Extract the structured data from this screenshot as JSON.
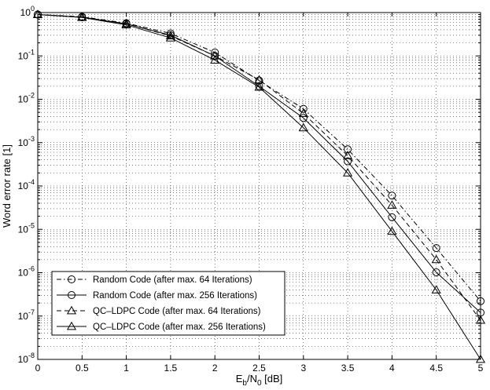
{
  "chart_data": {
    "type": "line",
    "xlabel": {
      "base": "E",
      "sub1": "b",
      "mid": "/N",
      "sub2": "0",
      "tail": " [dB]"
    },
    "ylabel": "Word error rate [1]",
    "xlim": [
      0,
      5
    ],
    "ylim_log10": [
      -8,
      0
    ],
    "y_scale": "log",
    "grid": true,
    "x_ticks": [
      "0",
      "0.5",
      "1",
      "1.5",
      "2",
      "2.5",
      "3",
      "3.5",
      "4",
      "4.5",
      "5"
    ],
    "y_ticks": [
      {
        "base": "10",
        "exp": "0"
      },
      {
        "base": "10",
        "exp": "-1"
      },
      {
        "base": "10",
        "exp": "-2"
      },
      {
        "base": "10",
        "exp": "-3"
      },
      {
        "base": "10",
        "exp": "-4"
      },
      {
        "base": "10",
        "exp": "-5"
      },
      {
        "base": "10",
        "exp": "-6"
      },
      {
        "base": "10",
        "exp": "-7"
      },
      {
        "base": "10",
        "exp": "-8"
      }
    ],
    "legend_position": "bottom-left",
    "series": [
      {
        "name": "Random Code (after max. 64 Iterations)",
        "line_style": "dashdot",
        "marker": "circle",
        "x": [
          0,
          0.5,
          1,
          1.5,
          2,
          2.5,
          3,
          3.5,
          4,
          4.5,
          5
        ],
        "y": [
          0.9,
          0.8,
          0.57,
          0.33,
          0.12,
          0.027,
          0.006,
          0.0007,
          6e-05,
          3.7e-06,
          2.2e-07
        ]
      },
      {
        "name": "Random Code (after max. 256 Iterations)",
        "line_style": "solid",
        "marker": "circle",
        "x": [
          0,
          0.5,
          1,
          1.5,
          2,
          2.5,
          3,
          3.5,
          4,
          4.5,
          5
        ],
        "y": [
          0.9,
          0.78,
          0.55,
          0.3,
          0.1,
          0.02,
          0.0037,
          0.00037,
          1.9e-05,
          1.02e-06,
          1.2e-07
        ]
      },
      {
        "name": "QC–LDPC Code (after max. 64 Iterations)",
        "line_style": "dashed",
        "marker": "triangle",
        "x": [
          0,
          0.5,
          1,
          1.5,
          2,
          2.5,
          3,
          3.5,
          4,
          4.5,
          5
        ],
        "y": [
          0.9,
          0.79,
          0.55,
          0.29,
          0.1,
          0.028,
          0.0047,
          0.0005,
          3.6e-05,
          2e-06,
          8e-08
        ]
      },
      {
        "name": "QC–LDPC Code (after max. 256 Iterations)",
        "line_style": "solid",
        "marker": "triangle",
        "x": [
          0,
          0.5,
          1,
          1.5,
          2,
          2.5,
          3,
          3.5,
          4,
          4.5,
          5
        ],
        "y": [
          0.9,
          0.77,
          0.52,
          0.26,
          0.08,
          0.019,
          0.0022,
          0.0002,
          9e-06,
          4e-07,
          1e-08
        ]
      }
    ]
  }
}
